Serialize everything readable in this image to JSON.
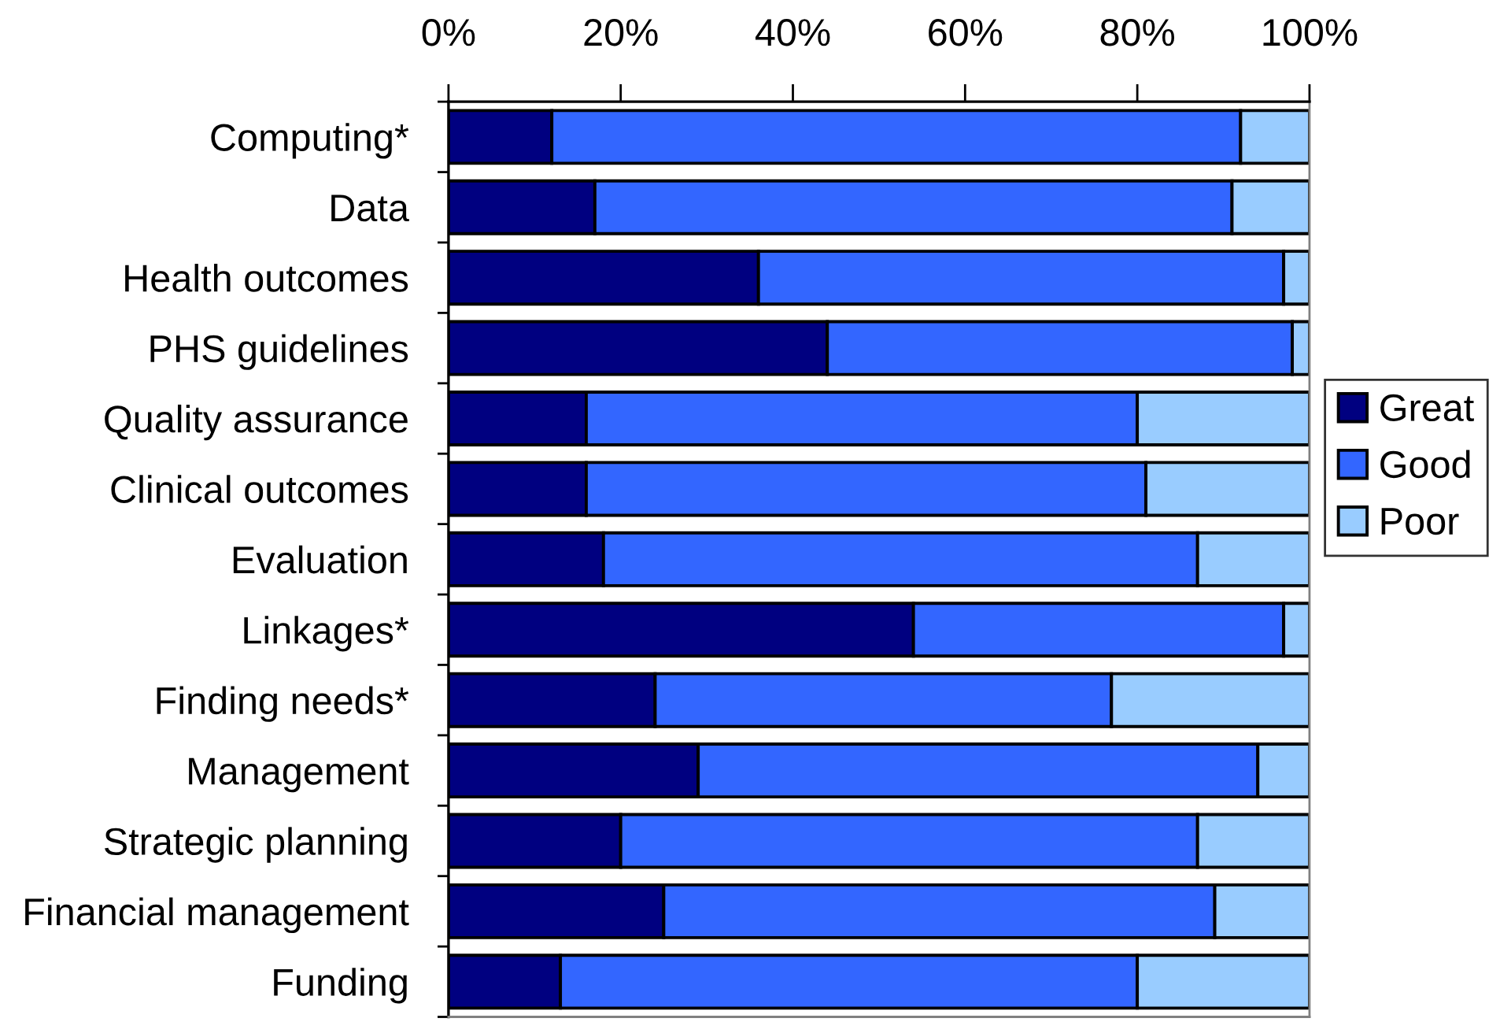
{
  "chart_data": {
    "type": "bar",
    "orientation": "horizontal",
    "stacked": true,
    "categories": [
      "Computing*",
      "Data",
      "Health outcomes",
      "PHS guidelines",
      "Quality assurance",
      "Clinical outcomes",
      "Evaluation",
      "Linkages*",
      "Finding needs*",
      "Management",
      "Strategic planning",
      "Financial management",
      "Funding"
    ],
    "series": [
      {
        "name": "Great",
        "color": "#000080",
        "values": [
          12,
          17,
          36,
          44,
          16,
          16,
          18,
          54,
          24,
          29,
          20,
          25,
          13
        ]
      },
      {
        "name": "Good",
        "color": "#3366ff",
        "values": [
          80,
          74,
          61,
          54,
          64,
          65,
          69,
          43,
          53,
          65,
          67,
          64,
          67
        ]
      },
      {
        "name": "Poor",
        "color": "#99ccff",
        "values": [
          8,
          9,
          3,
          2,
          20,
          19,
          13,
          3,
          23,
          6,
          13,
          11,
          20
        ]
      }
    ],
    "xlim": [
      0,
      100
    ],
    "xticks": [
      {
        "value": 0,
        "label": "0%"
      },
      {
        "value": 20,
        "label": "20%"
      },
      {
        "value": 40,
        "label": "40%"
      },
      {
        "value": 60,
        "label": "60%"
      },
      {
        "value": 80,
        "label": "80%"
      },
      {
        "value": 100,
        "label": "100%"
      }
    ],
    "legend": "right",
    "grid": false
  }
}
